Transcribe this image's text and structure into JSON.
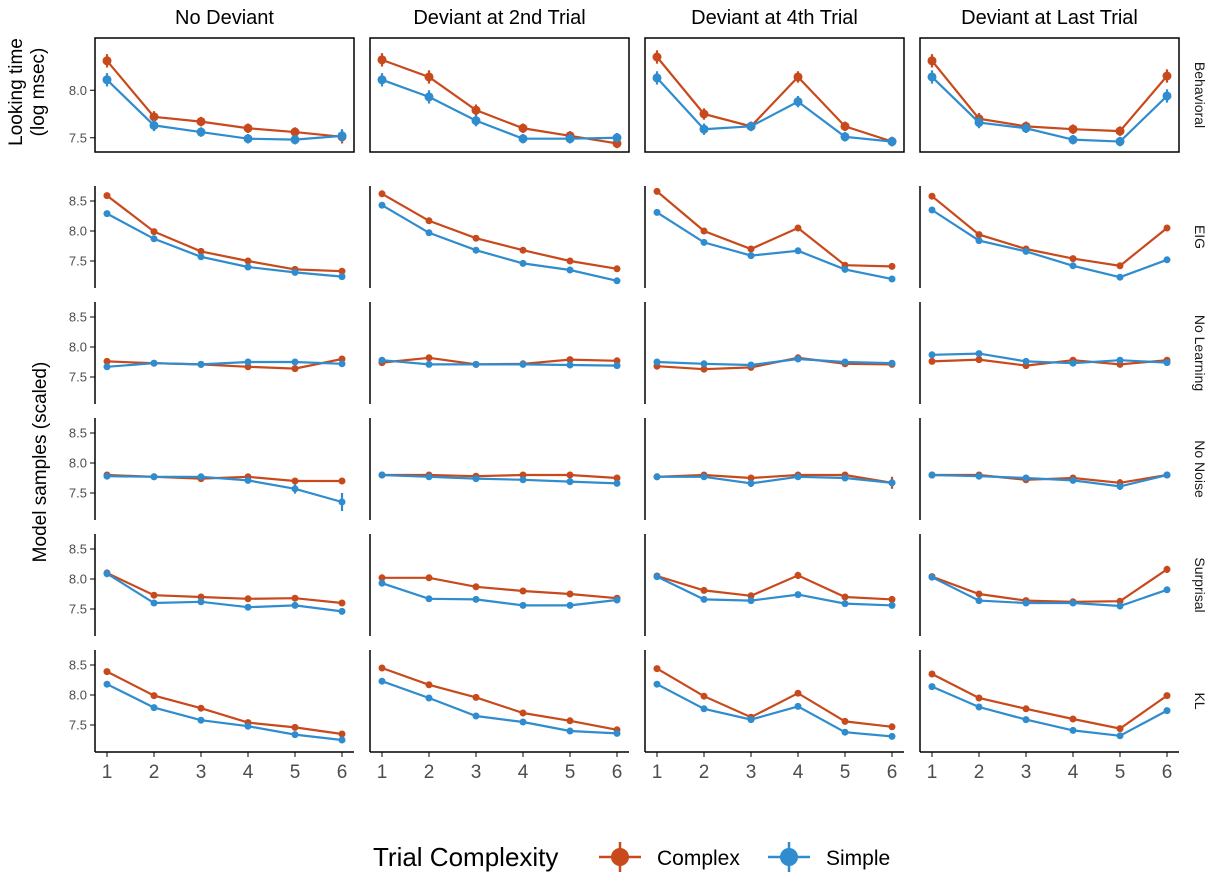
{
  "colors": {
    "complex": "#C8491B",
    "simple": "#2E8CCF",
    "axis": "#000000",
    "tick_text": "#4D4D4D",
    "background": "#FFFFFF"
  },
  "labels": {
    "behavioral_ylabel_line1": "Looking time",
    "behavioral_ylabel_line2": "(log msec)",
    "model_ylabel": "Model samples (scaled)",
    "legend_title": "Trial Complexity",
    "legend_complex": "Complex",
    "legend_simple": "Simple"
  },
  "chart_data": {
    "type": "line",
    "facet_columns": [
      "No Deviant",
      "Deviant at 2nd Trial",
      "Deviant at 4th Trial",
      "Deviant at Last Trial"
    ],
    "facet_rows": [
      "Behavioral",
      "EIG",
      "No Learning",
      "No Noise",
      "Surprisal",
      "KL"
    ],
    "x": [
      1,
      2,
      3,
      4,
      5,
      6
    ],
    "x_ticks": [
      1,
      2,
      3,
      4,
      5,
      6
    ],
    "y_ticks": {
      "Behavioral": [
        7.5,
        8.0
      ],
      "EIG": [
        7.5,
        8.0,
        8.5
      ],
      "No Learning": [
        7.5,
        8.0,
        8.5
      ],
      "No Noise": [
        7.5,
        8.0,
        8.5
      ],
      "Surprisal": [
        7.5,
        8.0,
        8.5
      ],
      "KL": [
        7.5,
        8.0,
        8.5
      ]
    },
    "ylim": {
      "Behavioral": [
        7.35,
        8.55
      ],
      "EIG": [
        7.05,
        8.75
      ],
      "No Learning": [
        7.05,
        8.75
      ],
      "No Noise": [
        7.05,
        8.75
      ],
      "Surprisal": [
        7.05,
        8.75
      ],
      "KL": [
        7.05,
        8.75
      ]
    },
    "legend": {
      "title": "Trial Complexity",
      "position": "bottom",
      "entries": [
        "Complex",
        "Simple"
      ]
    },
    "panels": {
      "Behavioral": {
        "No Deviant": {
          "Complex": {
            "y": [
              8.31,
              7.72,
              7.67,
              7.6,
              7.56,
              7.51
            ],
            "err": [
              0.07,
              0.06,
              0.05,
              0.05,
              0.05,
              0.07
            ]
          },
          "Simple": {
            "y": [
              8.11,
              7.63,
              7.56,
              7.49,
              7.48,
              7.52
            ],
            "err": [
              0.07,
              0.06,
              0.05,
              0.05,
              0.05,
              0.07
            ]
          }
        },
        "Deviant at 2nd Trial": {
          "Complex": {
            "y": [
              8.32,
              8.14,
              7.79,
              7.6,
              7.52,
              7.44
            ],
            "err": [
              0.07,
              0.07,
              0.06,
              0.05,
              0.05,
              0.05
            ]
          },
          "Simple": {
            "y": [
              8.11,
              7.93,
              7.68,
              7.49,
              7.49,
              7.5
            ],
            "err": [
              0.07,
              0.07,
              0.06,
              0.05,
              0.05,
              0.05
            ]
          }
        },
        "Deviant at 4th Trial": {
          "Complex": {
            "y": [
              8.35,
              7.75,
              7.62,
              8.14,
              7.62,
              7.46
            ],
            "err": [
              0.07,
              0.06,
              0.05,
              0.06,
              0.05,
              0.05
            ]
          },
          "Simple": {
            "y": [
              8.13,
              7.59,
              7.62,
              7.88,
              7.51,
              7.46
            ],
            "err": [
              0.07,
              0.06,
              0.05,
              0.06,
              0.05,
              0.05
            ]
          }
        },
        "Deviant at Last Trial": {
          "Complex": {
            "y": [
              8.31,
              7.7,
              7.62,
              7.59,
              7.57,
              8.15
            ],
            "err": [
              0.07,
              0.06,
              0.05,
              0.05,
              0.05,
              0.07
            ]
          },
          "Simple": {
            "y": [
              8.14,
              7.66,
              7.6,
              7.48,
              7.46,
              7.94
            ],
            "err": [
              0.07,
              0.06,
              0.05,
              0.05,
              0.05,
              0.07
            ]
          }
        }
      },
      "EIG": {
        "No Deviant": {
          "Complex": {
            "y": [
              8.59,
              7.99,
              7.66,
              7.5,
              7.36,
              7.33
            ]
          },
          "Simple": {
            "y": [
              8.29,
              7.87,
              7.57,
              7.4,
              7.31,
              7.24
            ]
          }
        },
        "Deviant at 2nd Trial": {
          "Complex": {
            "y": [
              8.62,
              8.17,
              7.88,
              7.68,
              7.5,
              7.37
            ]
          },
          "Simple": {
            "y": [
              8.43,
              7.97,
              7.68,
              7.46,
              7.35,
              7.17
            ]
          }
        },
        "Deviant at 4th Trial": {
          "Complex": {
            "y": [
              8.66,
              8.0,
              7.7,
              8.05,
              7.43,
              7.41
            ]
          },
          "Simple": {
            "y": [
              8.31,
              7.81,
              7.59,
              7.67,
              7.36,
              7.2
            ]
          }
        },
        "Deviant at Last Trial": {
          "Complex": {
            "y": [
              8.58,
              7.94,
              7.7,
              7.54,
              7.42,
              8.05
            ]
          },
          "Simple": {
            "y": [
              8.35,
              7.84,
              7.66,
              7.42,
              7.23,
              7.52
            ]
          }
        }
      },
      "No Learning": {
        "No Deviant": {
          "Complex": {
            "y": [
              7.76,
              7.73,
              7.71,
              7.67,
              7.64,
              7.8
            ]
          },
          "Simple": {
            "y": [
              7.67,
              7.73,
              7.71,
              7.75,
              7.75,
              7.72
            ]
          }
        },
        "Deviant at 2nd Trial": {
          "Complex": {
            "y": [
              7.74,
              7.82,
              7.71,
              7.72,
              7.79,
              7.77
            ]
          },
          "Simple": {
            "y": [
              7.78,
              7.71,
              7.71,
              7.71,
              7.7,
              7.69
            ]
          }
        },
        "Deviant at 4th Trial": {
          "Complex": {
            "y": [
              7.68,
              7.63,
              7.66,
              7.82,
              7.72,
              7.71
            ]
          },
          "Simple": {
            "y": [
              7.75,
              7.72,
              7.7,
              7.8,
              7.75,
              7.73
            ]
          }
        },
        "Deviant at Last Trial": {
          "Complex": {
            "y": [
              7.76,
              7.79,
              7.69,
              7.78,
              7.71,
              7.78
            ]
          },
          "Simple": {
            "y": [
              7.87,
              7.89,
              7.76,
              7.73,
              7.78,
              7.74
            ]
          }
        }
      },
      "No Noise": {
        "No Deviant": {
          "Complex": {
            "y": [
              7.8,
              7.77,
              7.74,
              7.77,
              7.7,
              7.7
            ],
            "err": [
              0.0,
              0.0,
              0.0,
              0.0,
              0.0,
              0.0
            ]
          },
          "Simple": {
            "y": [
              7.78,
              7.77,
              7.77,
              7.71,
              7.57,
              7.35
            ],
            "err": [
              0.0,
              0.0,
              0.0,
              0.05,
              0.08,
              0.15
            ]
          }
        },
        "Deviant at 2nd Trial": {
          "Complex": {
            "y": [
              7.8,
              7.8,
              7.78,
              7.8,
              7.8,
              7.75
            ]
          },
          "Simple": {
            "y": [
              7.8,
              7.77,
              7.74,
              7.72,
              7.69,
              7.66
            ]
          }
        },
        "Deviant at 4th Trial": {
          "Complex": {
            "y": [
              7.77,
              7.8,
              7.75,
              7.8,
              7.8,
              7.67
            ],
            "err": [
              0.0,
              0.0,
              0.0,
              0.0,
              0.0,
              0.1
            ]
          },
          "Simple": {
            "y": [
              7.77,
              7.77,
              7.66,
              7.77,
              7.75,
              7.67
            ],
            "err": [
              0.0,
              0.0,
              0.06,
              0.0,
              0.0,
              0.06
            ]
          }
        },
        "Deviant at Last Trial": {
          "Complex": {
            "y": [
              7.8,
              7.8,
              7.72,
              7.75,
              7.67,
              7.8
            ],
            "err": [
              0.0,
              0.0,
              0.05,
              0.0,
              0.06,
              0.0
            ]
          },
          "Simple": {
            "y": [
              7.8,
              7.78,
              7.75,
              7.71,
              7.61,
              7.8
            ],
            "err": [
              0.0,
              0.0,
              0.0,
              0.05,
              0.06,
              0.0
            ]
          }
        }
      },
      "Surprisal": {
        "No Deviant": {
          "Complex": {
            "y": [
              8.1,
              7.73,
              7.7,
              7.67,
              7.68,
              7.6
            ],
            "err": [
              0.06,
              0.0,
              0.0,
              0.0,
              0.0,
              0.0
            ]
          },
          "Simple": {
            "y": [
              8.09,
              7.6,
              7.62,
              7.53,
              7.56,
              7.46
            ],
            "err": [
              0.06,
              0.0,
              0.0,
              0.0,
              0.0,
              0.0
            ]
          }
        },
        "Deviant at 2nd Trial": {
          "Complex": {
            "y": [
              8.02,
              8.02,
              7.87,
              7.8,
              7.75,
              7.68
            ]
          },
          "Simple": {
            "y": [
              7.93,
              7.67,
              7.66,
              7.56,
              7.56,
              7.65
            ]
          }
        },
        "Deviant at 4th Trial": {
          "Complex": {
            "y": [
              8.05,
              7.81,
              7.72,
              8.06,
              7.7,
              7.66
            ],
            "err": [
              0.05,
              0.0,
              0.0,
              0.06,
              0.0,
              0.0
            ]
          },
          "Simple": {
            "y": [
              8.04,
              7.66,
              7.64,
              7.74,
              7.59,
              7.56
            ],
            "err": [
              0.05,
              0.0,
              0.0,
              0.0,
              0.0,
              0.0
            ]
          }
        },
        "Deviant at Last Trial": {
          "Complex": {
            "y": [
              8.04,
              7.75,
              7.64,
              7.62,
              7.63,
              8.16
            ],
            "err": [
              0.05,
              0.0,
              0.0,
              0.0,
              0.0,
              0.06
            ]
          },
          "Simple": {
            "y": [
              8.03,
              7.64,
              7.6,
              7.6,
              7.55,
              7.82
            ],
            "err": [
              0.05,
              0.0,
              0.0,
              0.0,
              0.0,
              0.05
            ]
          }
        }
      },
      "KL": {
        "No Deviant": {
          "Complex": {
            "y": [
              8.39,
              7.99,
              7.78,
              7.54,
              7.46,
              7.35
            ]
          },
          "Simple": {
            "y": [
              8.18,
              7.79,
              7.58,
              7.48,
              7.34,
              7.25
            ]
          }
        },
        "Deviant at 2nd Trial": {
          "Complex": {
            "y": [
              8.45,
              8.17,
              7.96,
              7.7,
              7.57,
              7.42
            ]
          },
          "Simple": {
            "y": [
              8.23,
              7.95,
              7.65,
              7.55,
              7.4,
              7.36
            ]
          }
        },
        "Deviant at 4th Trial": {
          "Complex": {
            "y": [
              8.44,
              7.98,
              7.63,
              8.03,
              7.56,
              7.47
            ]
          },
          "Simple": {
            "y": [
              8.18,
              7.77,
              7.59,
              7.81,
              7.38,
              7.31
            ]
          }
        },
        "Deviant at Last Trial": {
          "Complex": {
            "y": [
              8.35,
              7.95,
              7.77,
              7.6,
              7.44,
              7.99
            ]
          },
          "Simple": {
            "y": [
              8.14,
              7.8,
              7.59,
              7.41,
              7.32,
              7.74
            ]
          }
        }
      }
    }
  }
}
